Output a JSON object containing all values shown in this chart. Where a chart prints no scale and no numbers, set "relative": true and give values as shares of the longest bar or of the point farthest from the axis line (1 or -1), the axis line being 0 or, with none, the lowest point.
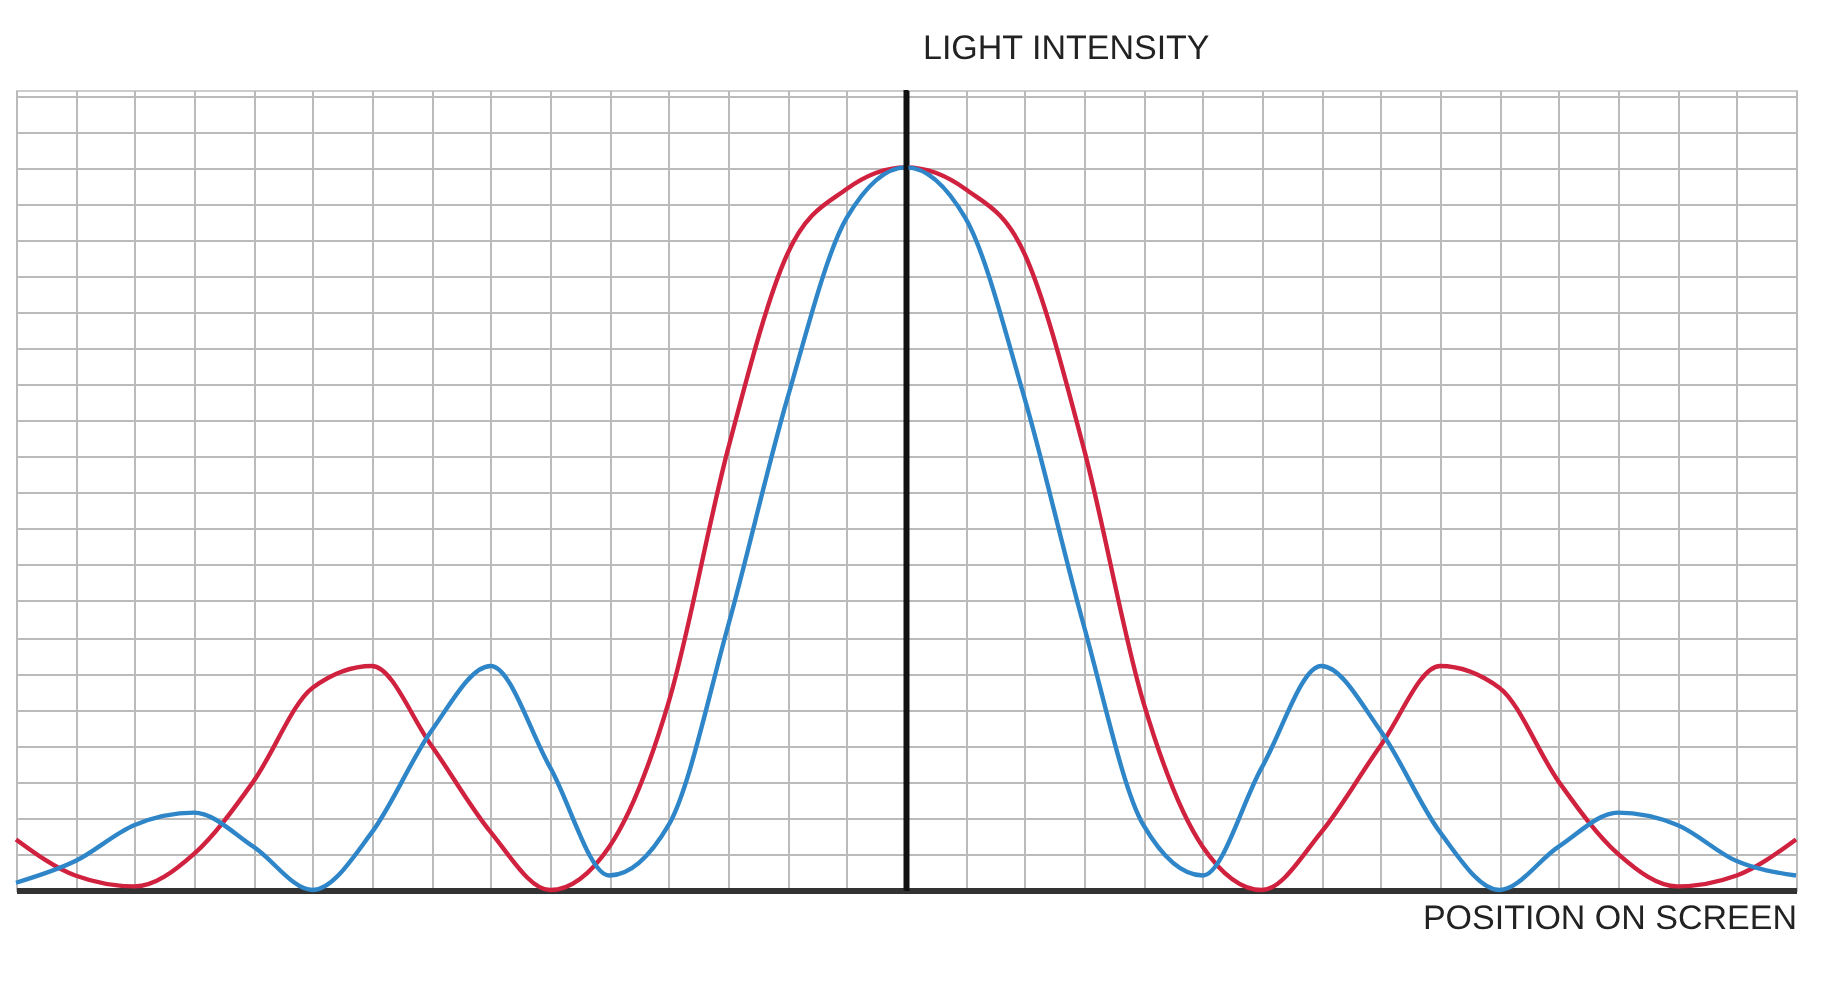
{
  "chart_data": {
    "type": "line",
    "xlabel": "POSITION ON SCREEN",
    "ylabel": "LIGHT INTENSITY",
    "relative": true,
    "grid": true,
    "legend": false,
    "marker": "none",
    "line_style": "solid",
    "categories": [
      null,
      null,
      null,
      null,
      null,
      null,
      null,
      null,
      null,
      null,
      null,
      null,
      null,
      null,
      null,
      null,
      null,
      null,
      null,
      null,
      null,
      null,
      null,
      null,
      null,
      null,
      null,
      null,
      null,
      null,
      null
    ],
    "series": [
      {
        "color": "#d0213f",
        "values": [
          0.07,
          0.02,
          0.005,
          0.05,
          0.15,
          0.28,
          0.31,
          0.2,
          0.08,
          0.0,
          0.06,
          0.26,
          0.61,
          0.88,
          0.97,
          1,
          0.97,
          0.88,
          0.61,
          0.26,
          0.06,
          0.0,
          0.08,
          0.2,
          0.31,
          0.28,
          0.15,
          0.05,
          0.005,
          0.02,
          0.07
        ]
      },
      {
        "color": "#2e86c8",
        "values": [
          0.01,
          0.04,
          0.09,
          0.107,
          0.06,
          0.0,
          0.08,
          0.22,
          0.31,
          0.17,
          0.02,
          0.09,
          0.365,
          0.68,
          0.93,
          1,
          0.93,
          0.68,
          0.365,
          0.09,
          0.02,
          0.17,
          0.31,
          0.22,
          0.08,
          0.0,
          0.06,
          0.107,
          0.09,
          0.04,
          0.02
        ]
      }
    ]
  }
}
